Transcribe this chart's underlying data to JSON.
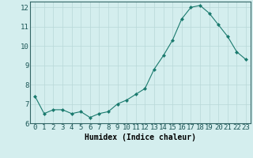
{
  "x": [
    0,
    1,
    2,
    3,
    4,
    5,
    6,
    7,
    8,
    9,
    10,
    11,
    12,
    13,
    14,
    15,
    16,
    17,
    18,
    19,
    20,
    21,
    22,
    23
  ],
  "y": [
    7.4,
    6.5,
    6.7,
    6.7,
    6.5,
    6.6,
    6.3,
    6.5,
    6.6,
    7.0,
    7.2,
    7.5,
    7.8,
    8.8,
    9.5,
    10.3,
    11.4,
    12.0,
    12.1,
    11.7,
    11.1,
    10.5,
    9.7,
    9.3
  ],
  "xlabel": "Humidex (Indice chaleur)",
  "xlim": [
    -0.5,
    23.5
  ],
  "ylim": [
    6,
    12.3
  ],
  "yticks": [
    6,
    7,
    8,
    9,
    10,
    11,
    12
  ],
  "xticks": [
    0,
    1,
    2,
    3,
    4,
    5,
    6,
    7,
    8,
    9,
    10,
    11,
    12,
    13,
    14,
    15,
    16,
    17,
    18,
    19,
    20,
    21,
    22,
    23
  ],
  "line_color": "#1a7a6e",
  "marker": "D",
  "marker_size": 2.0,
  "bg_color": "#d4eeee",
  "grid_color": "#b8d8d8",
  "xlabel_fontsize": 7,
  "tick_fontsize": 6.5
}
